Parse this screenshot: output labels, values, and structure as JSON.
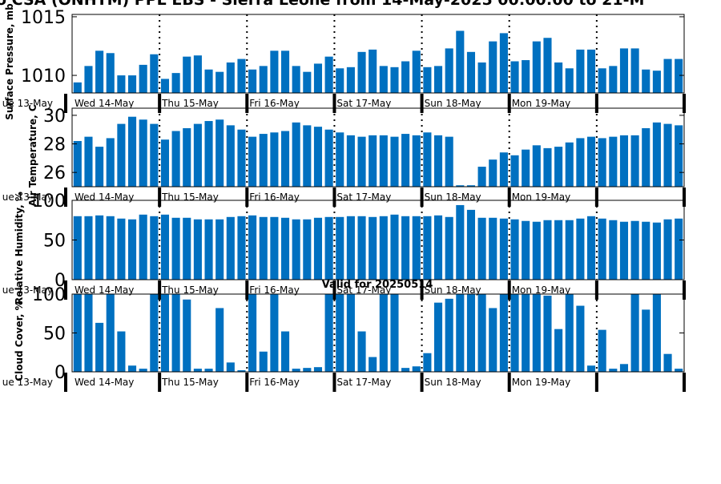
{
  "page": {
    "title": "o CSA (ONHTM) PPL EBS  - Sierra Leone from 14-May-2025 00:00:00 to 21-M",
    "valid_label": "Valid for 20250514"
  },
  "colors": {
    "bar": "#0070c0",
    "axis": "#000000",
    "background": "#ffffff"
  },
  "day_labels": [
    "Wed 14-May",
    "Thu 15-May",
    "Fri 16-May",
    "Sat 17-May",
    "Sun 18-May",
    "Mon 19-May"
  ],
  "axis_left_date": "ue 13-May",
  "chart_data": [
    {
      "type": "bar",
      "ylabel": "Surface Pressure, mb",
      "ylim": [
        1008.5,
        1015.2
      ],
      "y_ticks": [
        1010,
        1015
      ],
      "bars_per_day": 8,
      "grid": false,
      "values": [
        1009.4,
        1010.8,
        1012.1,
        1011.9,
        1010.0,
        1010.0,
        1010.9,
        1011.8,
        1009.7,
        1010.2,
        1011.6,
        1011.7,
        1010.5,
        1010.3,
        1011.1,
        1011.4,
        1010.5,
        1010.8,
        1012.1,
        1012.1,
        1010.8,
        1010.3,
        1011.0,
        1011.6,
        1010.6,
        1010.7,
        1012.0,
        1012.2,
        1010.8,
        1010.7,
        1011.2,
        1012.1,
        1010.7,
        1010.8,
        1012.3,
        1013.8,
        1012.0,
        1011.1,
        1012.9,
        1013.6,
        1011.2,
        1011.3,
        1012.9,
        1013.2,
        1011.1,
        1010.6,
        1012.2,
        1012.2,
        1010.6,
        1010.8,
        1012.3,
        1012.3,
        1010.5,
        1010.4,
        1011.4,
        1011.4
      ]
    },
    {
      "type": "bar",
      "ylabel": "Air Temperature, C",
      "ylim": [
        25.0,
        30.5
      ],
      "y_ticks": [
        26,
        28,
        30
      ],
      "bars_per_day": 8,
      "grid": false,
      "values": [
        28.2,
        28.5,
        27.8,
        28.4,
        29.4,
        29.9,
        29.7,
        29.4,
        28.3,
        28.9,
        29.1,
        29.4,
        29.6,
        29.7,
        29.3,
        29.0,
        28.5,
        28.7,
        28.8,
        28.9,
        29.5,
        29.3,
        29.2,
        29.0,
        28.8,
        28.6,
        28.5,
        28.6,
        28.6,
        28.5,
        28.7,
        28.6,
        28.8,
        28.6,
        28.5,
        25.1,
        25.1,
        26.4,
        26.9,
        27.4,
        27.2,
        27.6,
        27.9,
        27.7,
        27.8,
        28.1,
        28.4,
        28.5,
        28.4,
        28.5,
        28.6,
        28.6,
        29.1,
        29.5,
        29.4,
        29.3
      ]
    },
    {
      "type": "bar",
      "ylabel": "Relative Humidity, %",
      "ylim": [
        0,
        100
      ],
      "y_ticks": [
        0,
        50,
        100
      ],
      "bars_per_day": 8,
      "grid": false,
      "values": [
        80,
        80,
        81,
        80,
        77,
        76,
        82,
        80,
        82,
        78,
        78,
        76,
        76,
        76,
        79,
        80,
        81,
        79,
        79,
        78,
        76,
        76,
        78,
        79,
        79,
        80,
        80,
        79,
        80,
        82,
        80,
        80,
        80,
        81,
        79,
        94,
        88,
        78,
        78,
        77,
        76,
        74,
        73,
        75,
        75,
        75,
        77,
        80,
        77,
        75,
        73,
        74,
        73,
        72,
        76,
        77
      ]
    },
    {
      "type": "bar",
      "ylabel": "Cloud Cover, %",
      "ylim": [
        0,
        100
      ],
      "y_ticks": [
        0,
        50,
        100
      ],
      "bars_per_day": 8,
      "grid": false,
      "values": [
        100,
        100,
        63,
        100,
        52,
        8,
        4,
        100,
        100,
        100,
        93,
        4,
        4,
        82,
        12,
        2,
        100,
        26,
        100,
        52,
        4,
        5,
        6,
        100,
        100,
        100,
        52,
        19,
        100,
        100,
        5,
        7,
        24,
        89,
        94,
        100,
        100,
        100,
        82,
        100,
        100,
        100,
        100,
        98,
        55,
        100,
        85,
        8,
        54,
        4,
        10,
        100,
        80,
        100,
        23,
        4
      ]
    }
  ]
}
